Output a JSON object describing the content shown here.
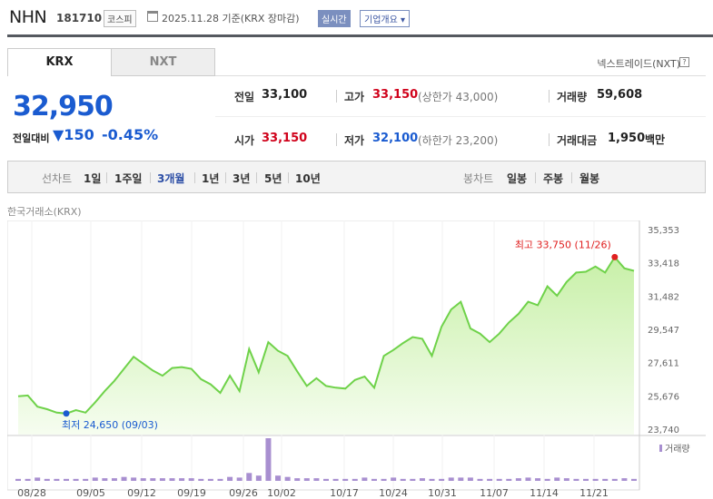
{
  "header": {
    "name": "NHN",
    "code": "181710",
    "market_badge": "코스피",
    "date_text": "2025.11.28  기준(KRX 장마감)",
    "live_label": "실시간",
    "corp_label": "기업개요 ▾"
  },
  "tabs": {
    "krx": "KRX",
    "nxt": "NXT",
    "nxt_link": "넥스트레이드(NXT)"
  },
  "quote": {
    "price": "32,950",
    "prev_label": "전일대비",
    "change": "▼150",
    "change_pct": "-0.45%",
    "prev_close_label": "전일",
    "prev_close": "33,100",
    "open_label": "시가",
    "open": "33,150",
    "high_label": "고가",
    "high": "33,150",
    "upper_limit": "(상한가 43,000)",
    "low_label": "저가",
    "low": "32,100",
    "lower_limit": "(하한가 23,200)",
    "volume_label": "거래량",
    "volume": "59,608",
    "amount_label": "거래대금",
    "amount": "1,950",
    "amount_unit": "백만"
  },
  "toolbar": {
    "line_label": "선차트",
    "periods": [
      "1일",
      "1주일",
      "3개월",
      "1년",
      "3년",
      "5년",
      "10년"
    ],
    "selected_period": "3개월",
    "candle_label": "봉차트",
    "candles": [
      "일봉",
      "주봉",
      "월봉"
    ]
  },
  "chart_data": {
    "type": "area",
    "exchange_label": "한국거래소(KRX)",
    "y_ticks": [
      "35,353",
      "33,418",
      "31,482",
      "29,547",
      "27,611",
      "25,676",
      "23,740"
    ],
    "ylim": [
      23740,
      35353
    ],
    "x_ticks": [
      "08/28",
      "09/05",
      "09/12",
      "09/19",
      "09/26",
      "10/02",
      "10/17",
      "10/24",
      "10/31",
      "11/07",
      "11/14",
      "11/21"
    ],
    "high_annotation": "최고  33,750 (11/26)",
    "low_annotation": "최저  24,650 (09/03)",
    "volume_legend": "거래량",
    "line_color": "#6fd24a",
    "fill_color": "#e8f8d8",
    "marker_high_color": "#e02020",
    "marker_low_color": "#1a5bd0",
    "prices": [
      25650,
      25700,
      25050,
      24900,
      24700,
      24650,
      24850,
      24700,
      25300,
      25950,
      26550,
      27250,
      27950,
      27550,
      27150,
      26850,
      27300,
      27350,
      27250,
      26650,
      26350,
      25850,
      26850,
      25950,
      28400,
      27050,
      28800,
      28300,
      28000,
      27100,
      26250,
      26700,
      26250,
      26150,
      26100,
      26600,
      26800,
      26150,
      28000,
      28350,
      28750,
      29100,
      29000,
      28000,
      29700,
      30700,
      31150,
      29600,
      29300,
      28800,
      29300,
      29950,
      30450,
      31150,
      30950,
      32050,
      31500,
      32300,
      32850,
      32900,
      33200,
      32850,
      33750,
      33100,
      32950
    ],
    "volume": [
      3,
      3,
      5,
      3,
      3,
      3,
      3,
      3,
      5,
      4,
      4,
      6,
      5,
      4,
      4,
      4,
      4,
      4,
      4,
      3,
      3,
      3,
      6,
      5,
      12,
      8,
      65,
      8,
      6,
      4,
      4,
      4,
      3,
      3,
      3,
      3,
      5,
      3,
      3,
      5,
      3,
      3,
      4,
      3,
      3,
      5,
      5,
      5,
      3,
      3,
      3,
      3,
      4,
      5,
      4,
      3,
      5,
      4,
      3,
      3,
      3,
      3,
      3,
      4,
      3
    ]
  }
}
